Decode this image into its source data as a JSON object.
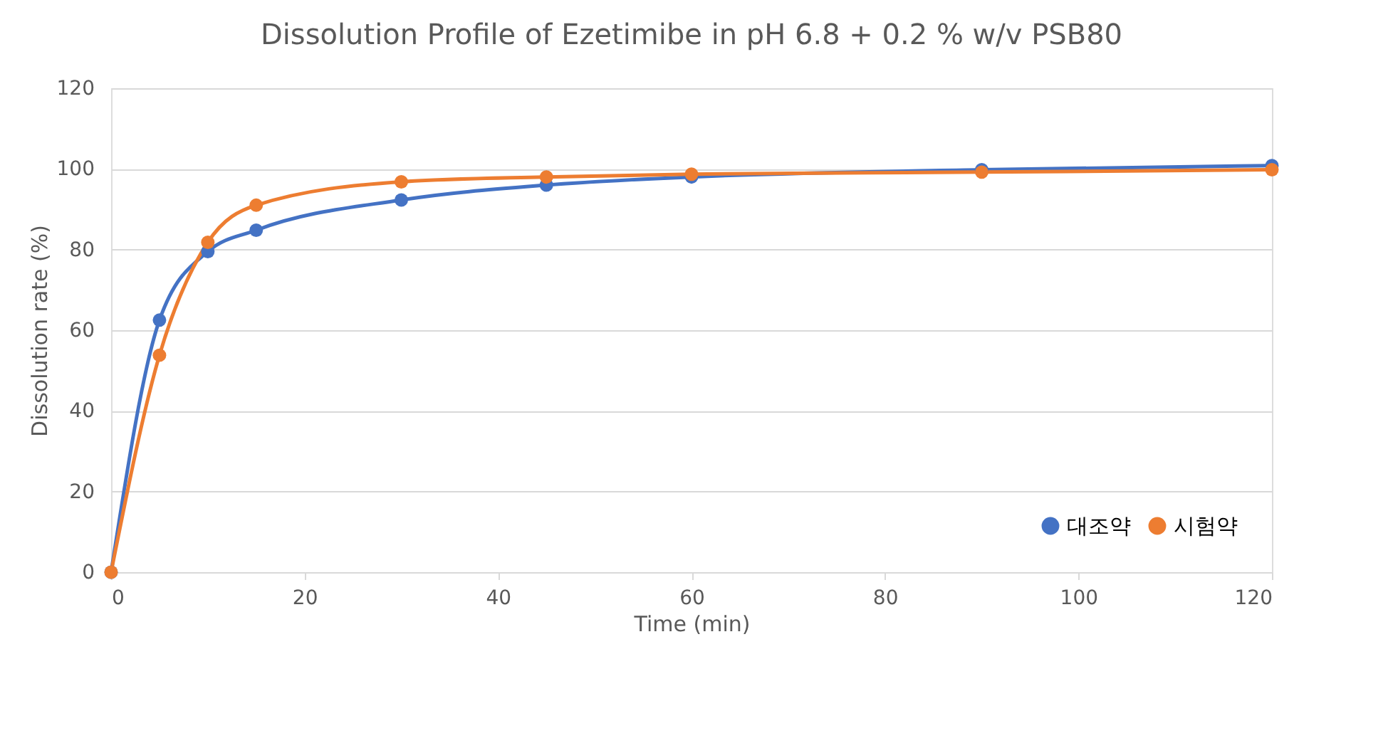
{
  "chart_data": {
    "type": "line",
    "title": "Dissolution Profile of Ezetimibe in pH 6.8 + 0.2 % w/v PSB80",
    "xlabel": "Time (min)",
    "ylabel": "Dissolution rate (%)",
    "x": [
      0,
      5,
      10,
      15,
      30,
      45,
      60,
      90,
      120
    ],
    "series": [
      {
        "name": "대조약",
        "color": "#4472c4",
        "values": [
          0,
          62.5,
          79.5,
          84.8,
          92.3,
          96,
          98,
          99.8,
          100.8
        ]
      },
      {
        "name": "시험약",
        "color": "#ed7d31",
        "values": [
          0,
          53.8,
          81.8,
          91,
          96.8,
          98,
          98.7,
          99.2,
          99.8
        ]
      }
    ],
    "xlim": [
      0,
      120
    ],
    "xticks": [
      0,
      20,
      40,
      60,
      80,
      100,
      120
    ],
    "ylim": [
      0,
      120
    ],
    "yticks": [
      0,
      20,
      40,
      60,
      80,
      100,
      120
    ],
    "grid": "y",
    "legend": "bottom right",
    "marker": "circle",
    "line_style": "solid"
  }
}
